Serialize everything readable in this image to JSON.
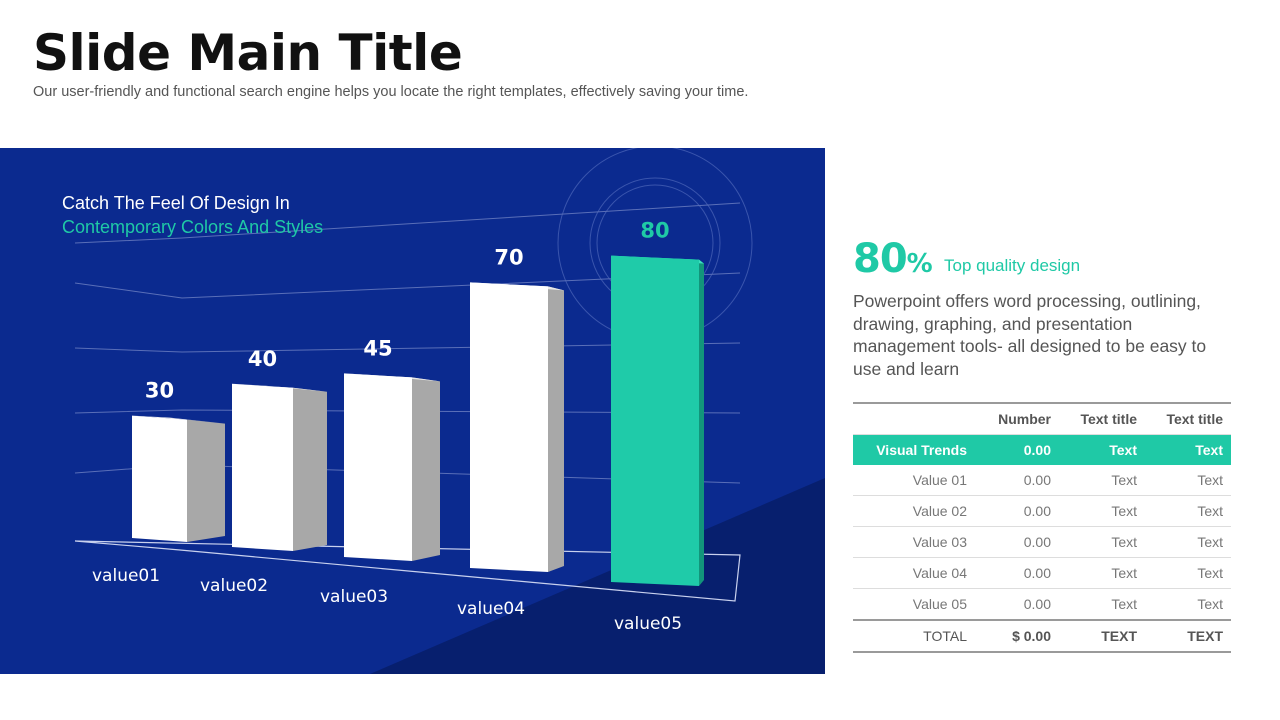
{
  "slide": {
    "title": "Slide Main Title",
    "subtitle": "Our user-friendly and functional search engine helps you locate the right templates, effectively saving your time."
  },
  "chart_data": {
    "type": "bar",
    "heading_line1": "Catch The Feel Of Design In",
    "heading_line2": "Contemporary Colors And Styles",
    "categories": [
      "value01",
      "value02",
      "value03",
      "value04",
      "value05"
    ],
    "values": [
      30,
      40,
      45,
      70,
      80
    ],
    "highlight_index": 4,
    "ylim": [
      0,
      100
    ],
    "colors": {
      "panel_bg": "#0b2a8f",
      "panel_shadow": "#071f6e",
      "bar_front": "#ffffff",
      "bar_side": "#a8a8a8",
      "bar_top": "#e9e9e9",
      "highlight_front": "#1fcba9",
      "highlight_side": "#12957b",
      "highlight_top": "#3ae0bf",
      "accent": "#1fc9a6",
      "label": "#ffffff"
    }
  },
  "stat": {
    "value": "80",
    "unit": "%",
    "label": "Top quality design",
    "description": "Powerpoint offers word processing, outlining, drawing, graphing, and presentation management tools- all designed to be easy to use and learn"
  },
  "table": {
    "headers": [
      "",
      "Number",
      "Text title",
      "Text title"
    ],
    "highlight_row": [
      "Visual Trends",
      "0.00",
      "Text",
      "Text"
    ],
    "rows": [
      [
        "Value 01",
        "0.00",
        "Text",
        "Text"
      ],
      [
        "Value 02",
        "0.00",
        "Text",
        "Text"
      ],
      [
        "Value 03",
        "0.00",
        "Text",
        "Text"
      ],
      [
        "Value 04",
        "0.00",
        "Text",
        "Text"
      ],
      [
        "Value 05",
        "0.00",
        "Text",
        "Text"
      ]
    ],
    "total_row": [
      "TOTAL",
      "$ 0.00",
      "TEXT",
      "TEXT"
    ]
  }
}
